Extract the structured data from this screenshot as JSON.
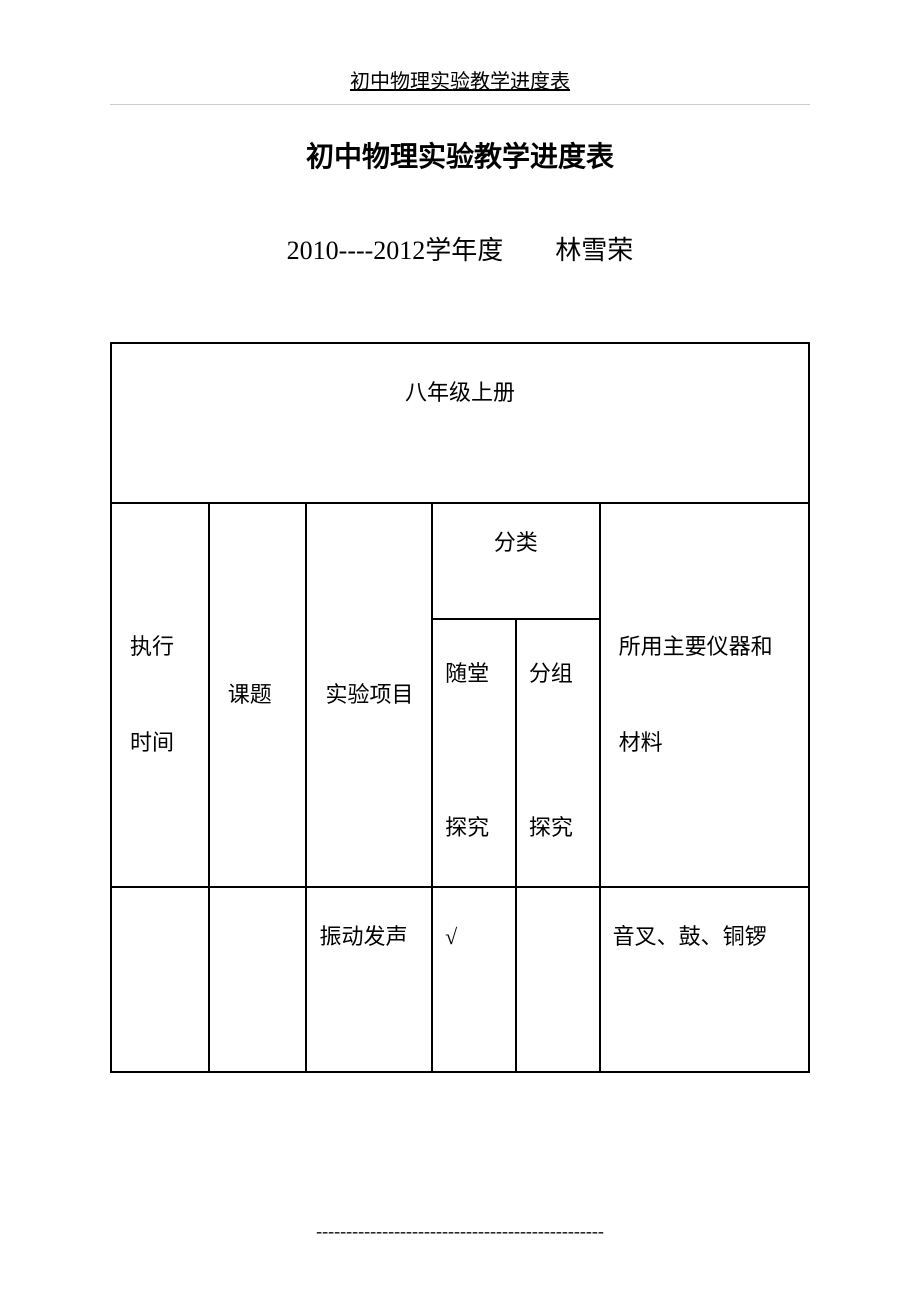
{
  "header_text": "初中物理实验教学进度表",
  "main_title": "初中物理实验教学进度表",
  "sub_title": "2010----2012学年度　　林雪荣",
  "table": {
    "grade_title": "八年级上册",
    "columns": {
      "exec_time": "执行\n\n时间",
      "topic": "课题",
      "project": "实验项目",
      "category": "分类",
      "category_sub1": "随堂\n\n探究",
      "category_sub2": "分组\n\n探究",
      "materials": "所用主要仪器和\n\n材料"
    },
    "rows": [
      {
        "time": "",
        "topic": "",
        "project": "振动发声",
        "cat1": "√",
        "cat2": "",
        "materials": "音叉、鼓、铜锣"
      }
    ]
  },
  "footer_dashes": "------------------------------------------------",
  "colors": {
    "text": "#000000",
    "background": "#ffffff",
    "border": "#000000",
    "header_line": "#cccccc"
  },
  "typography": {
    "header_fontsize": 20,
    "title_fontsize": 28,
    "subtitle_fontsize": 26,
    "table_fontsize": 22
  }
}
